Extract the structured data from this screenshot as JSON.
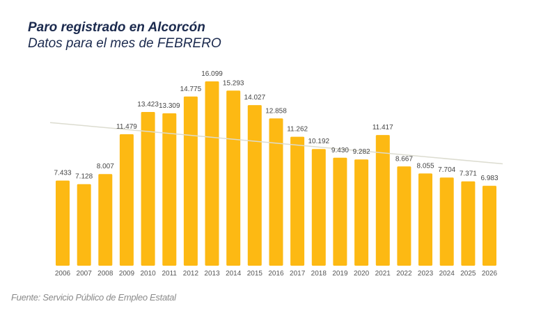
{
  "chart_data": {
    "type": "bar",
    "title": "Paro registrado en Alcorcón",
    "subtitle": "Datos para el mes de FEBRERO",
    "xlabel": "",
    "ylabel": "",
    "ylim": [
      0,
      16099
    ],
    "categories": [
      "2006",
      "2007",
      "2008",
      "2009",
      "2010",
      "2011",
      "2012",
      "2013",
      "2014",
      "2015",
      "2016",
      "2017",
      "2018",
      "2019",
      "2020",
      "2021",
      "2022",
      "2023",
      "2024",
      "2025",
      "2026"
    ],
    "values": [
      7433,
      7128,
      8007,
      11479,
      13423,
      13309,
      14775,
      16099,
      15293,
      14027,
      12858,
      11262,
      10192,
      9430,
      9282,
      11417,
      8667,
      8055,
      7704,
      7371,
      6983
    ],
    "value_labels": [
      "7.433",
      "7.128",
      "8.007",
      "11.479",
      "13.423",
      "13.309",
      "14.775",
      "16.099",
      "15.293",
      "14.027",
      "12.858",
      "11.262",
      "10.192",
      "9.430",
      "9.282",
      "11.417",
      "8.667",
      "8.055",
      "7.704",
      "7.371",
      "6.983"
    ],
    "trendline": {
      "type": "linear",
      "start_value": 12500,
      "end_value": 8900
    },
    "grid": false,
    "legend": "none",
    "colors": {
      "bar": "#FDB913",
      "trend": "#dcdcd0",
      "title": "#1b2a4e"
    }
  },
  "source": "Fuente: Servicio Público de Empleo Estatal"
}
